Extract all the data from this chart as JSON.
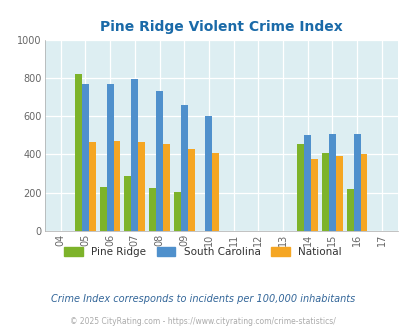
{
  "title": "Pine Ridge Violent Crime Index",
  "years": [
    2004,
    2005,
    2006,
    2007,
    2008,
    2009,
    2010,
    2011,
    2012,
    2013,
    2014,
    2015,
    2016,
    2017
  ],
  "year_labels": [
    "04",
    "05",
    "06",
    "07",
    "08",
    "09",
    "10",
    "11",
    "12",
    "13",
    "14",
    "15",
    "16",
    "17"
  ],
  "pine_ridge": {
    "2005": 820,
    "2006": 230,
    "2007": 285,
    "2008": 225,
    "2009": 205,
    "2014": 455,
    "2015": 410,
    "2016": 220
  },
  "south_carolina": {
    "2005": 770,
    "2006": 770,
    "2007": 795,
    "2008": 730,
    "2009": 660,
    "2010": 600,
    "2014": 500,
    "2015": 505,
    "2016": 505
  },
  "national": {
    "2005": 465,
    "2006": 470,
    "2007": 465,
    "2008": 455,
    "2009": 430,
    "2010": 408,
    "2014": 375,
    "2015": 393,
    "2016": 400
  },
  "color_pine_ridge": "#7db32a",
  "color_sc": "#4f90cc",
  "color_national": "#f5a623",
  "ylim": [
    0,
    1000
  ],
  "yticks": [
    0,
    200,
    400,
    600,
    800,
    1000
  ],
  "bg_color": "#ddeef2",
  "subtitle": "Crime Index corresponds to incidents per 100,000 inhabitants",
  "footer": "© 2025 CityRating.com - https://www.cityrating.com/crime-statistics/",
  "title_color": "#1a6aa8",
  "subtitle_color": "#336699",
  "footer_color": "#aaaaaa",
  "bar_width": 0.28
}
